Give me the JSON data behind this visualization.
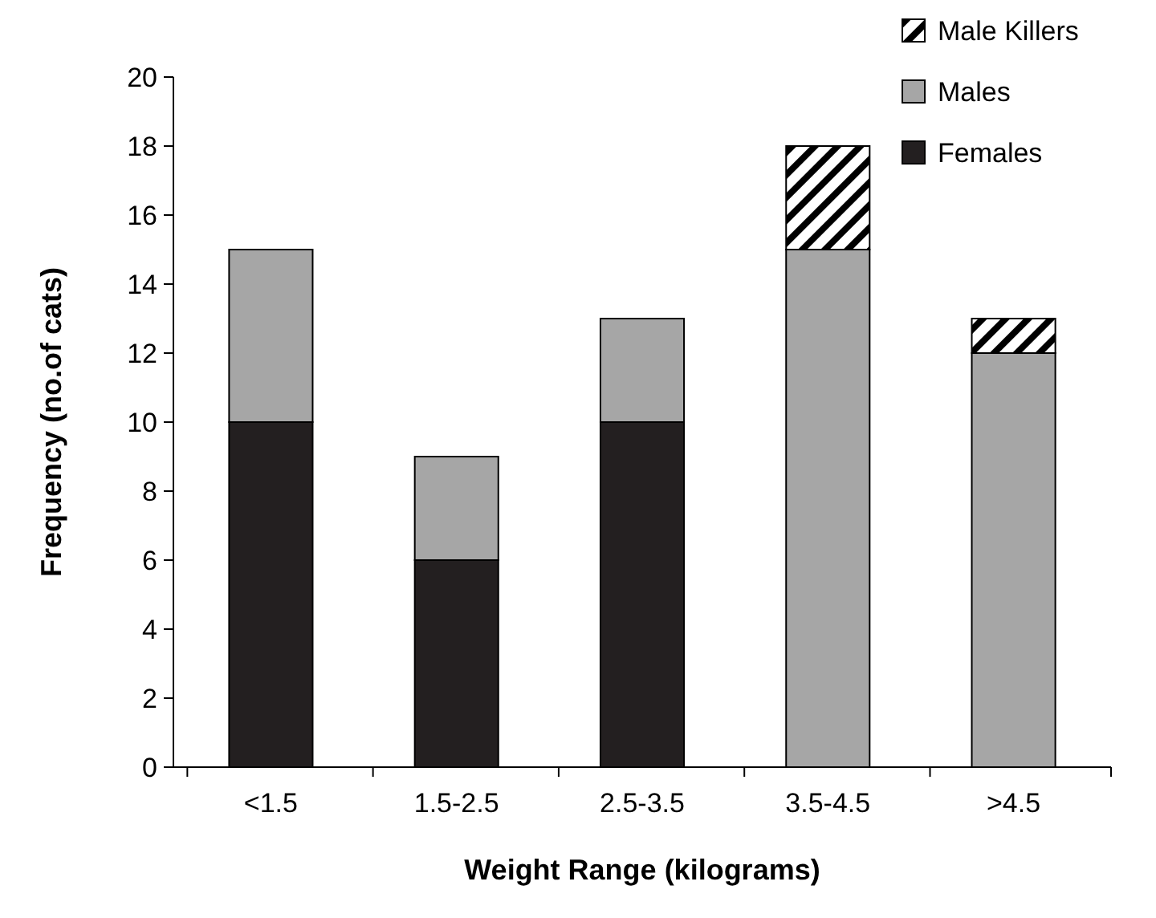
{
  "chart_data": {
    "type": "bar",
    "stacked": true,
    "xlabel": "Weight Range (kilograms)",
    "ylabel": "Frequency (no.of cats)",
    "categories": [
      "<1.5",
      "1.5-2.5",
      "2.5-3.5",
      "3.5-4.5",
      ">4.5"
    ],
    "series": [
      {
        "name": "Females",
        "color": "#231f20",
        "values": [
          10,
          6,
          10,
          0,
          0
        ]
      },
      {
        "name": "Males",
        "color": "#a6a6a6",
        "values": [
          5,
          3,
          3,
          15,
          12
        ]
      },
      {
        "name": "Male Killers",
        "color": "#000000",
        "values": [
          0,
          0,
          0,
          3,
          1
        ]
      }
    ],
    "ylim": [
      0,
      20
    ],
    "yticks": [
      0,
      2,
      4,
      6,
      8,
      10,
      12,
      14,
      16,
      18,
      20
    ],
    "grid": false,
    "legend": "top right"
  }
}
